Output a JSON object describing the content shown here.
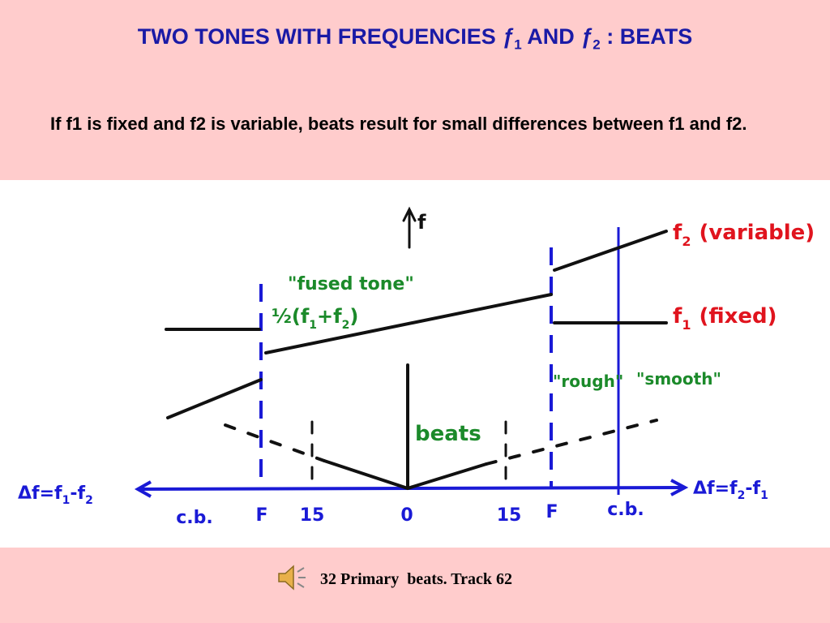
{
  "header": {
    "title": {
      "prefix": "TWO TONES WITH FREQUENCIES ",
      "f1": "ƒ",
      "sub1": "1",
      "mid": " AND ",
      "f2": "ƒ",
      "sub2": "2",
      "suffix": " : BEATS"
    },
    "text": "If f1 is fixed and f2 is variable, beats result for small differences between f1 and f2."
  },
  "diagram": {
    "freq_axis": "f",
    "f2_label": {
      "symbol": "f",
      "sub": "2",
      "rest": "(variable)"
    },
    "f1_label": {
      "symbol": "f",
      "sub": "1",
      "rest": "(fixed)"
    },
    "fused_tone": "\"fused tone\"",
    "mean": {
      "frac": "½",
      "open": "(f",
      "sub1": "1",
      "plus": "+f",
      "sub2": "2",
      "close": ")"
    },
    "rough": "\"rough\"",
    "smooth": "\"smooth\"",
    "beats": "beats",
    "left_axis": {
      "pre": "Δf=f",
      "s1": "1",
      "mid": "-f",
      "s2": "2"
    },
    "right_axis": {
      "pre": "Δf=f",
      "s1": "2",
      "mid": "-f",
      "s2": "1"
    },
    "ticks": [
      "c.b.",
      "F",
      "15",
      "0",
      "15",
      "F",
      "c.b."
    ]
  },
  "footer": {
    "text": "32 Primary  beats. Track 62"
  }
}
